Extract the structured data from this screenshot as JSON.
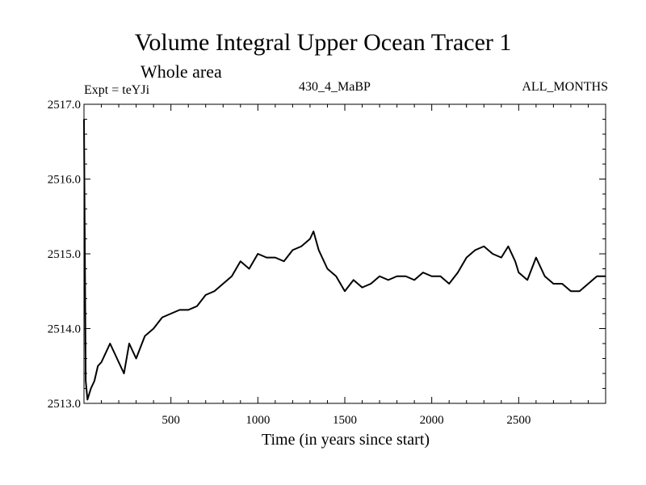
{
  "chart_data": {
    "type": "line",
    "title": "Volume Integral Upper Ocean Tracer 1",
    "subtitle": "Whole area",
    "experiment_label": "Expt = teYJi",
    "period_label": "430_4_MaBP",
    "months_label": "ALL_MONTHS",
    "xlabel": "Time (in years since start)",
    "ylabel": "",
    "xlim": [
      0,
      3000
    ],
    "ylim": [
      2513.0,
      2517.0
    ],
    "x_ticks": [
      500,
      1000,
      1500,
      2000,
      2500
    ],
    "y_ticks": [
      2513.0,
      2514.0,
      2515.0,
      2516.0,
      2517.0
    ],
    "y_tick_labels": [
      "2513.0",
      "2514.0",
      "2515.0",
      "2516.0",
      "2517.0"
    ],
    "grid": false,
    "series": [
      {
        "name": "Tracer 1",
        "color": "#000000",
        "x": [
          0,
          10,
          20,
          40,
          60,
          80,
          100,
          150,
          200,
          230,
          260,
          300,
          350,
          400,
          450,
          500,
          550,
          600,
          650,
          700,
          750,
          800,
          850,
          900,
          950,
          1000,
          1050,
          1100,
          1150,
          1200,
          1250,
          1300,
          1320,
          1350,
          1400,
          1450,
          1500,
          1550,
          1600,
          1650,
          1700,
          1750,
          1800,
          1850,
          1900,
          1950,
          2000,
          2050,
          2100,
          2150,
          2200,
          2250,
          2300,
          2350,
          2400,
          2440,
          2480,
          2500,
          2550,
          2600,
          2650,
          2700,
          2750,
          2800,
          2850,
          2900,
          2950,
          3000
        ],
        "values": [
          2516.8,
          2513.3,
          2513.05,
          2513.2,
          2513.3,
          2513.5,
          2513.55,
          2513.8,
          2513.55,
          2513.4,
          2513.8,
          2513.6,
          2513.9,
          2514.0,
          2514.15,
          2514.2,
          2514.25,
          2514.25,
          2514.3,
          2514.45,
          2514.5,
          2514.6,
          2514.7,
          2514.9,
          2514.8,
          2515.0,
          2514.95,
          2514.95,
          2514.9,
          2515.05,
          2515.1,
          2515.2,
          2515.3,
          2515.05,
          2514.8,
          2514.7,
          2514.5,
          2514.65,
          2514.55,
          2514.6,
          2514.7,
          2514.65,
          2514.7,
          2514.7,
          2514.65,
          2514.75,
          2514.7,
          2514.7,
          2514.6,
          2514.75,
          2514.95,
          2515.05,
          2515.1,
          2515.0,
          2514.95,
          2515.1,
          2514.9,
          2514.75,
          2514.65,
          2514.95,
          2514.7,
          2514.6,
          2514.6,
          2514.5,
          2514.5,
          2514.6,
          2514.7,
          2514.7
        ]
      }
    ]
  }
}
